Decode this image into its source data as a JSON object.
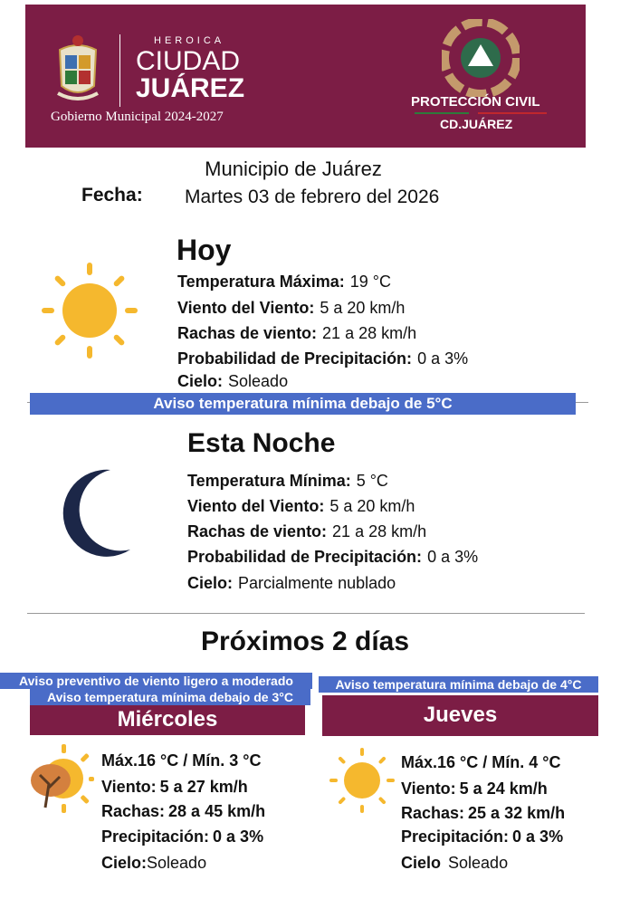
{
  "header": {
    "city_prefix": "HEROICA",
    "city_line1": "CIUDAD",
    "city_line2": "JUÁREZ",
    "government": "Gobierno Municipal 2024-2027",
    "agency_line1": "PROTECCIÓN CIVIL",
    "agency_line2": "CD.JUÁREZ",
    "brand_color": "#7c1d45"
  },
  "municipality": "Municipio de Juárez",
  "date_label": "Fecha:",
  "date_value": "Martes 03 de febrero del 2026",
  "today": {
    "title": "Hoy",
    "icon": "sun-icon",
    "rows": [
      {
        "label": "Temperatura Máxima:",
        "value": "19 °C"
      },
      {
        "label": "Viento del Viento:",
        "value": "5 a 20   km/h"
      },
      {
        "label": "Rachas de viento:",
        "value": "21 a 28   km/h"
      },
      {
        "label": "Probabilidad de Precipitación:",
        "value": "0 a 3%"
      },
      {
        "label": "Cielo:",
        "value": "Soleado"
      }
    ],
    "warning": "Aviso  temperatura mínima debajo de 5°C"
  },
  "tonight": {
    "title": "Esta Noche",
    "icon": "moon-icon",
    "rows": [
      {
        "label": "Temperatura Mínima:",
        "value": "5   °C"
      },
      {
        "label": "Viento del Viento:",
        "value": "5 a 20   km/h"
      },
      {
        "label": "Rachas de viento:",
        "value": "21 a 28   km/h"
      },
      {
        "label": "Probabilidad de Precipitación:",
        "value": "0 a 3%"
      },
      {
        "label": "Cielo:",
        "value": "Parcialmente nublado"
      }
    ]
  },
  "next_days": {
    "title": "Próximos 2 días",
    "days": [
      {
        "name": "Miércoles",
        "icon": "windy-sun-tree-icon",
        "warnings": [
          "Aviso preventivo de viento ligero a moderado",
          "Aviso temperatura mínima debajo de 3°C"
        ],
        "temps": "Máx.16 °C / Mín.  3 °C",
        "wind_label": "Viento:",
        "wind": "5 a 27 km/h",
        "gusts_label": "Rachas:",
        "gusts": "28 a 45 km/h",
        "precip_label": "Precipitación:",
        "precip": "0 a 3%",
        "sky_label": "Cielo:",
        "sky": "Soleado"
      },
      {
        "name": "Jueves",
        "icon": "sun-icon",
        "warnings": [
          "Aviso temperatura mínima debajo de 4°C"
        ],
        "temps": "Máx.16 °C / Mín. 4  °C",
        "wind_label": "Viento:",
        "wind": "5 a 24 km/h",
        "gusts_label": "Rachas:",
        "gusts": "25 a 32 km/h",
        "precip_label": "Precipitación:",
        "precip": "0 a 3%",
        "sky_label": "Cielo",
        "sky": "Soleado"
      }
    ]
  }
}
